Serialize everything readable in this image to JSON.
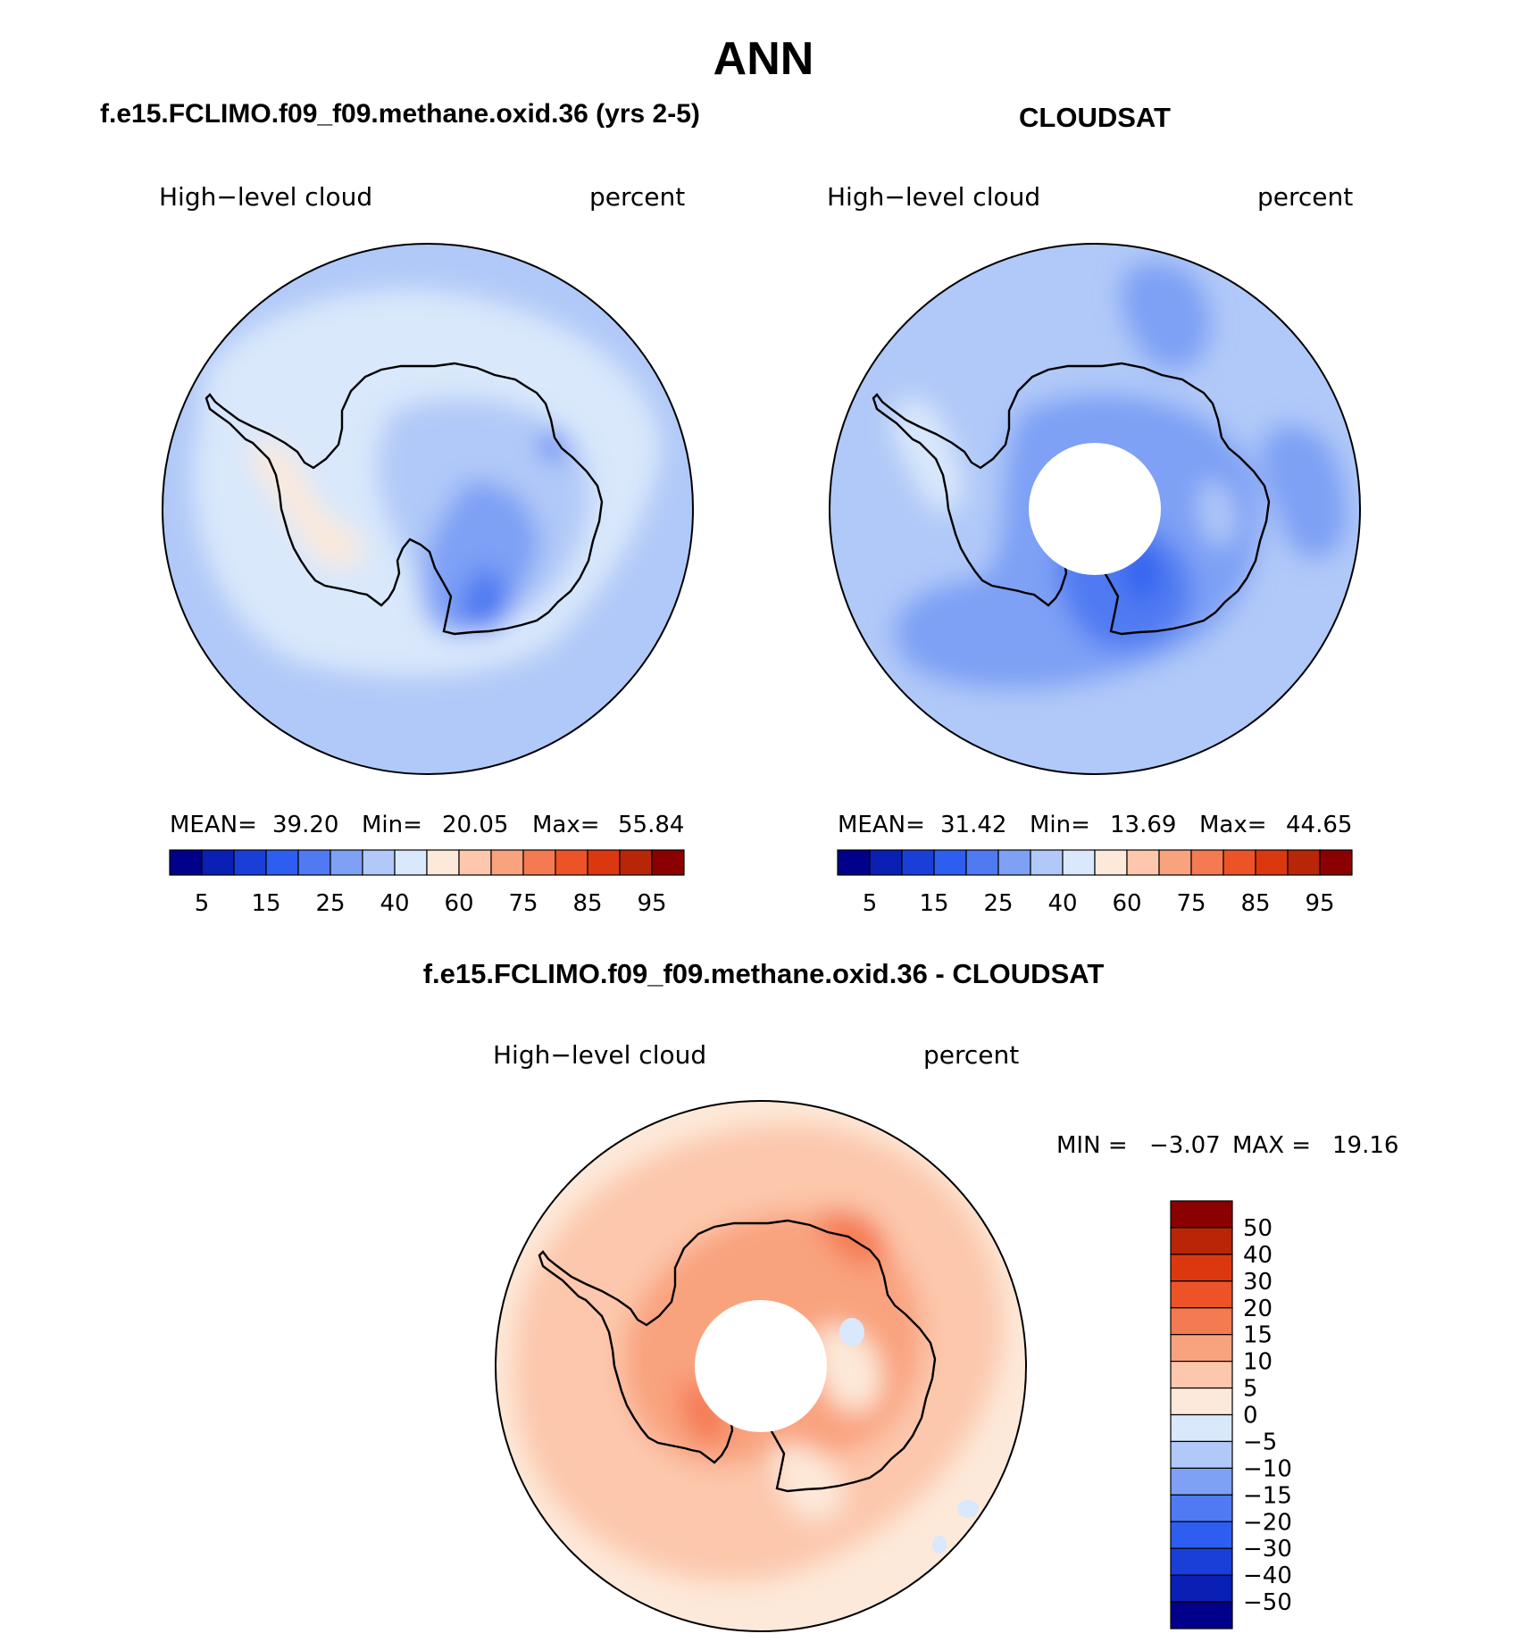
{
  "page": {
    "title": "ANN",
    "diff_title": "f.e15.FCLIMO.f09_f09.methane.oxid.36 - CLOUDSAT"
  },
  "chart_data": [
    {
      "type": "heatmap",
      "projection": "south-polar-stereographic",
      "title": "f.e15.FCLIMO.f09_f09.methane.oxid.36 (yrs 2-5)",
      "variable": "High−level cloud",
      "units": "percent",
      "stats": {
        "mean_label": "MEAN=",
        "mean": "39.20",
        "min_label": "Min=",
        "min": "20.05",
        "max_label": "Max=",
        "max": "55.84"
      },
      "colorbar_levels": [
        5,
        10,
        15,
        20,
        25,
        30,
        40,
        50,
        60,
        70,
        75,
        80,
        85,
        90,
        95
      ],
      "colorbar_labels": [
        "5",
        "15",
        "25",
        "40",
        "60",
        "75",
        "85",
        "95"
      ],
      "colors": [
        "#00008b",
        "#0a1fb4",
        "#1a3fd8",
        "#2e5ef0",
        "#4f7af2",
        "#7ea0f5",
        "#b1c9f8",
        "#d9e8fb",
        "#fde9d9",
        "#fcc7ac",
        "#f9a27e",
        "#f47a52",
        "#ec5427",
        "#dc3810",
        "#b82607",
        "#8b0000"
      ],
      "regions": [
        {
          "level": "40-50",
          "feature": "ocean-ring"
        },
        {
          "level": "50-60",
          "feature": "coastal-band"
        },
        {
          "level": "60-70",
          "feature": "antarctic-peninsula"
        },
        {
          "level": "30-40",
          "feature": "east-antarctica"
        },
        {
          "level": "20-30",
          "feature": "ross-ice-shelf"
        }
      ]
    },
    {
      "type": "heatmap",
      "projection": "south-polar-stereographic",
      "title": "CLOUDSAT",
      "variable": "High−level cloud",
      "units": "percent",
      "stats": {
        "mean_label": "MEAN=",
        "mean": "31.42",
        "min_label": "Min=",
        "min": "13.69",
        "max_label": "Max=",
        "max": "44.65"
      },
      "colorbar_levels": [
        5,
        10,
        15,
        20,
        25,
        30,
        40,
        50,
        60,
        70,
        75,
        80,
        85,
        90,
        95
      ],
      "colorbar_labels": [
        "5",
        "15",
        "25",
        "40",
        "60",
        "75",
        "85",
        "95"
      ],
      "colors": [
        "#00008b",
        "#0a1fb4",
        "#1a3fd8",
        "#2e5ef0",
        "#4f7af2",
        "#7ea0f5",
        "#b1c9f8",
        "#d9e8fb",
        "#fde9d9",
        "#fcc7ac",
        "#f9a27e",
        "#f47a52",
        "#ec5427",
        "#dc3810",
        "#b82607",
        "#8b0000"
      ],
      "pole_missing": true,
      "regions": [
        {
          "level": "40-50",
          "feature": "ocean-ring"
        },
        {
          "level": "30-40",
          "feature": "east-antarctica"
        },
        {
          "level": "20-30",
          "feature": "ross-sea"
        },
        {
          "level": "15-20",
          "feature": "ross-core"
        }
      ]
    },
    {
      "type": "heatmap",
      "projection": "south-polar-stereographic",
      "title": "f.e15.FCLIMO.f09_f09.methane.oxid.36 - CLOUDSAT",
      "variable": "High−level cloud",
      "units": "percent",
      "stats": {
        "min_label": "MIN =",
        "min": "−3.07",
        "max_label": "MAX =",
        "max": "19.16"
      },
      "colorbar_levels": [
        -50,
        -40,
        -30,
        -20,
        -15,
        -10,
        -5,
        0,
        5,
        10,
        15,
        20,
        30,
        40,
        50
      ],
      "colorbar_labels": [
        "50",
        "40",
        "30",
        "20",
        "15",
        "10",
        "5",
        "0",
        "−5",
        "−10",
        "−15",
        "−20",
        "−30",
        "−40",
        "−50"
      ],
      "colors": [
        "#00008b",
        "#0a1fb4",
        "#1a3fd8",
        "#2e5ef0",
        "#4f7af2",
        "#7ea0f5",
        "#b1c9f8",
        "#d9e8fb",
        "#fde9d9",
        "#fcc7ac",
        "#f9a27e",
        "#f47a52",
        "#ec5427",
        "#dc3810",
        "#b82607",
        "#8b0000"
      ],
      "pole_missing": true,
      "regions": [
        {
          "level": "0-5",
          "feature": "ocean-background"
        },
        {
          "level": "5-10",
          "feature": "southern-ocean"
        },
        {
          "level": "10-15",
          "feature": "antarctic-margin"
        },
        {
          "level": "15-20",
          "feature": "ross-sea-max"
        },
        {
          "level": "-5-0",
          "feature": "small-patches"
        }
      ]
    }
  ]
}
